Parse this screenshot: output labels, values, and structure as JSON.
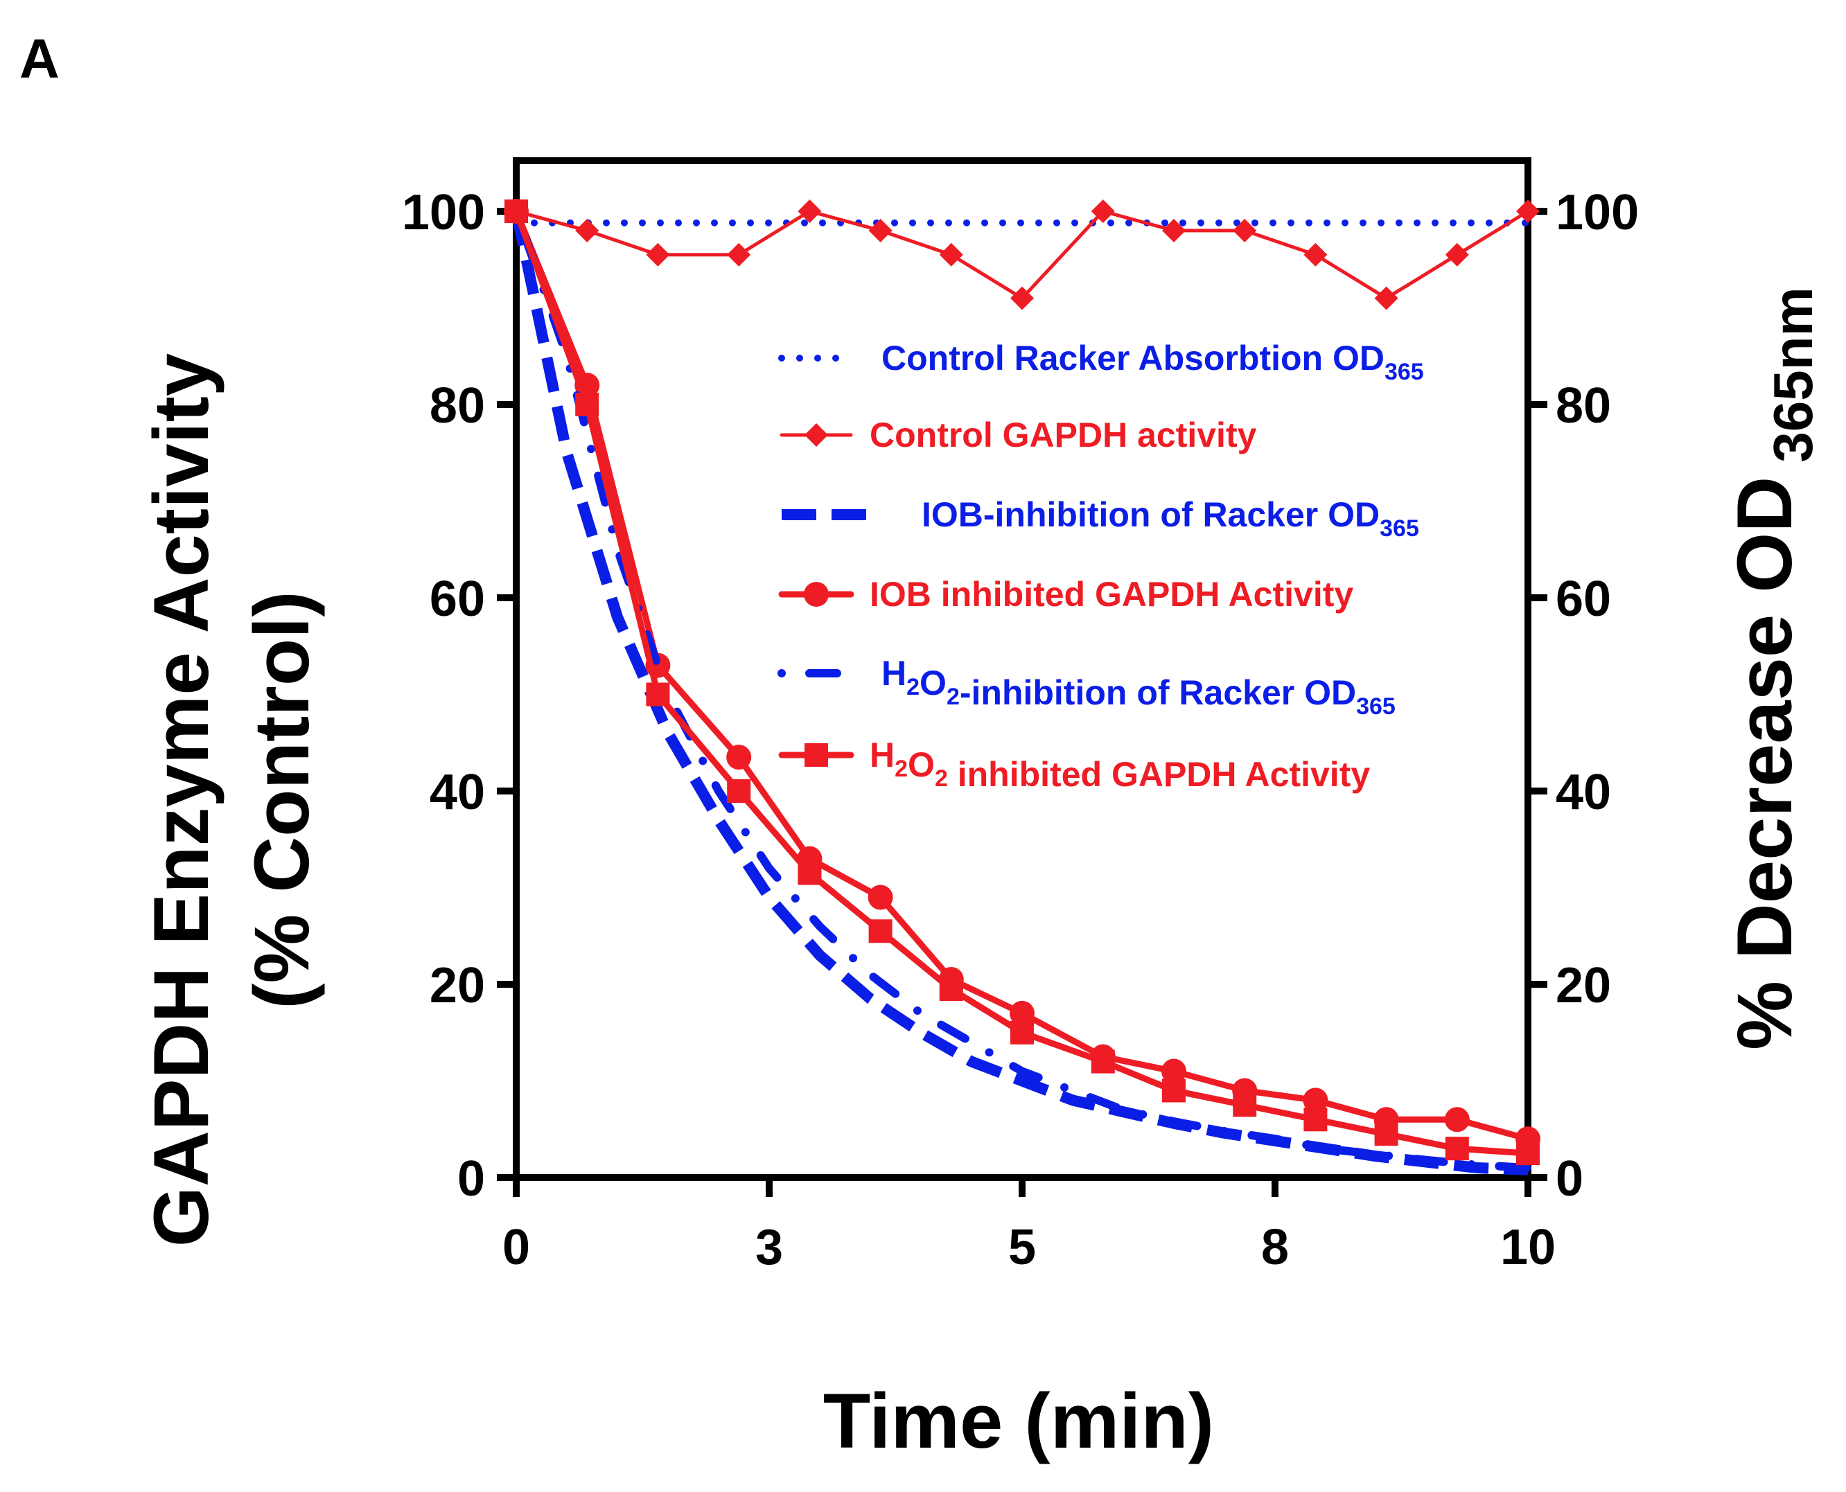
{
  "panel_label": "A",
  "chart_data": {
    "type": "line",
    "xlabel": "Time (min)",
    "ylabel_lines": [
      "GAPDH Enzyme Activity",
      "(% Control)"
    ],
    "y2label_main": "% Decrease OD",
    "y2label_sub": "365nm",
    "xlim": [
      0,
      10
    ],
    "ylim": [
      0,
      100
    ],
    "x_ticks": [
      {
        "value": 0,
        "label": "0"
      },
      {
        "value": 2.5,
        "label": "3"
      },
      {
        "value": 5,
        "label": "5"
      },
      {
        "value": 7.5,
        "label": "8"
      },
      {
        "value": 10,
        "label": "10"
      }
    ],
    "y_ticks": [
      0,
      20,
      40,
      60,
      80,
      100
    ],
    "y2_ticks": [
      0,
      20,
      40,
      60,
      80,
      100
    ],
    "series": [
      {
        "name": "Control Racker Absorbtion OD365",
        "label_main": "Control Racker Absorbtion OD",
        "label_sub": "365",
        "label_after": "",
        "color": "#0b1ee6",
        "style": "dotted",
        "marker": "none",
        "x": [
          0,
          10
        ],
        "y": [
          98.8,
          98.8
        ]
      },
      {
        "name": "Control GAPDH activity",
        "label_main": "Control GAPDH activity",
        "label_sub": "",
        "label_after": "",
        "color": "#ee1c24",
        "style": "solid-thin",
        "marker": "diamond",
        "x": [
          0,
          0.7,
          1.4,
          2.2,
          2.9,
          3.6,
          4.3,
          5.0,
          5.8,
          6.5,
          7.2,
          7.9,
          8.6,
          9.3,
          10.0
        ],
        "y": [
          100,
          98,
          95.5,
          95.5,
          100,
          98,
          95.5,
          91,
          100,
          98,
          98,
          95.5,
          91,
          95.5,
          100
        ]
      },
      {
        "name": "IOB-inhibition of Racker OD365",
        "label_main": "IOB-inhibition of Racker OD",
        "label_sub": "365",
        "label_after": "",
        "color": "#0b1ee6",
        "style": "dashed",
        "marker": "none",
        "x": [
          0,
          0.5,
          1,
          1.5,
          2,
          2.5,
          3,
          3.5,
          4,
          4.5,
          5,
          5.5,
          6,
          6.5,
          7,
          7.5,
          8,
          8.5,
          9,
          9.5,
          10
        ],
        "y": [
          100,
          75,
          58,
          46,
          37,
          29,
          23,
          18.5,
          15,
          12,
          10,
          8,
          6.8,
          5.6,
          4.6,
          3.8,
          3,
          2.2,
          1.6,
          1,
          0.8
        ]
      },
      {
        "name": "IOB inhibited GAPDH Activity",
        "label_main": "IOB inhibited GAPDH Activity",
        "label_sub": "",
        "label_after": "",
        "color": "#ee1c24",
        "style": "solid-thick",
        "marker": "circle",
        "x": [
          0,
          0.7,
          1.4,
          2.2,
          2.9,
          3.6,
          4.3,
          5.0,
          5.8,
          6.5,
          7.2,
          7.9,
          8.6,
          9.3,
          10.0
        ],
        "y": [
          100,
          82,
          53,
          43.5,
          33,
          29,
          20.5,
          17,
          12.5,
          11,
          9,
          8,
          6,
          6,
          4
        ]
      },
      {
        "name": "H2O2-inhibition of Racker OD365",
        "label_main": "H",
        "label_sub": "2",
        "label_mid": "O",
        "label_sub2": "2",
        "label_after": "-inhibition of Racker OD",
        "label_sub3": "365",
        "color": "#0b1ee6",
        "style": "dashdot",
        "marker": "none",
        "x": [
          0,
          0.5,
          1,
          1.5,
          2,
          2.5,
          3,
          3.5,
          4,
          4.5,
          5,
          5.5,
          6,
          6.5,
          7,
          7.5,
          8,
          8.5,
          9,
          9.5,
          10
        ],
        "y": [
          100,
          85,
          65,
          50,
          40,
          32,
          26,
          21,
          17,
          14,
          11,
          9,
          7,
          5.8,
          4.8,
          4,
          3,
          2.4,
          1.8,
          1.3,
          1
        ]
      },
      {
        "name": "H2O2 inhibited GAPDH Activity",
        "label_main": "H",
        "label_sub": "2",
        "label_mid": "O",
        "label_sub2": "2",
        "label_after": " inhibited GAPDH Activity",
        "label_sub3": "",
        "color": "#ee1c24",
        "style": "solid-thick",
        "marker": "square",
        "x": [
          0,
          0.7,
          1.4,
          2.2,
          2.9,
          3.6,
          4.3,
          5.0,
          5.8,
          6.5,
          7.2,
          7.9,
          8.6,
          9.3,
          10.0
        ],
        "y": [
          100,
          80,
          50,
          40,
          31.5,
          25.5,
          19.5,
          15,
          12,
          9,
          7.5,
          6,
          4.5,
          3,
          2.5
        ]
      }
    ]
  }
}
